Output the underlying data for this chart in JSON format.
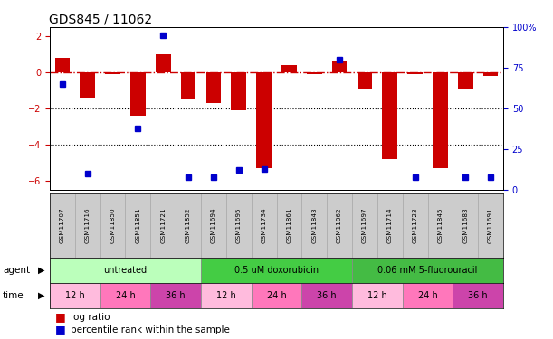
{
  "title": "GDS845 / 11062",
  "samples": [
    "GSM11707",
    "GSM11716",
    "GSM11850",
    "GSM11851",
    "GSM11721",
    "GSM11852",
    "GSM11694",
    "GSM11695",
    "GSM11734",
    "GSM11861",
    "GSM11843",
    "GSM11862",
    "GSM11697",
    "GSM11714",
    "GSM11723",
    "GSM11845",
    "GSM11683",
    "GSM11691"
  ],
  "log_ratio": [
    0.8,
    -1.4,
    -0.1,
    -2.4,
    1.0,
    -1.5,
    -1.7,
    -2.1,
    -5.3,
    0.4,
    -0.1,
    0.6,
    -0.9,
    -4.8,
    -0.1,
    -5.3,
    -0.9,
    -0.2
  ],
  "pct_vals": [
    65,
    10,
    null,
    38,
    95,
    8,
    8,
    12,
    13,
    null,
    null,
    80,
    null,
    null,
    8,
    null,
    8,
    8
  ],
  "bar_color": "#cc0000",
  "dot_color": "#0000cc",
  "bg_color": "#ffffff",
  "ylim_left": [
    -6.5,
    2.5
  ],
  "yticks_left": [
    -6,
    -4,
    -2,
    0,
    2
  ],
  "yticks_right_pct": [
    0,
    25,
    50,
    75,
    100
  ],
  "agent_colors": [
    "#bbffbb",
    "#44cc44",
    "#44bb44"
  ],
  "agent_labels": [
    "untreated",
    "0.5 uM doxorubicin",
    "0.06 mM 5-fluorouracil"
  ],
  "agent_starts": [
    0,
    6,
    12
  ],
  "agent_ends": [
    6,
    12,
    18
  ],
  "time_colors": [
    "#ffbbdd",
    "#ff77bb",
    "#cc44aa"
  ],
  "time_labels": [
    "12 h",
    "24 h",
    "36 h"
  ],
  "legend_bar": "log ratio",
  "legend_pct": "percentile rank within the sample",
  "bar_width": 0.6,
  "sample_cell_color": "#cccccc",
  "sample_cell_edge": "#aaaaaa"
}
